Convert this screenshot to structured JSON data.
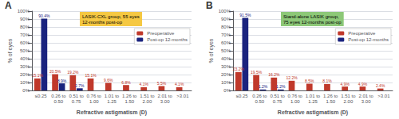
{
  "chart_data": [
    {
      "type": "bar",
      "title": "A",
      "categories": [
        "≤0.25",
        "0.26 to\n0.50",
        "0.51 to\n0.75",
        "0.76 to\n1.00",
        "1.01 to\n1.25",
        "1.26 to\n1.50",
        "1.51 to\n2.00",
        "2.01 to\n3.00",
        ">3.01"
      ],
      "series": [
        {
          "name": "Preoperative",
          "color": "#c0392b",
          "values": [
            15.1,
            20.5,
            19.2,
            15.1,
            9.6,
            6.8,
            4.1,
            5.5,
            4.1
          ],
          "value_labels": [
            "15.1%",
            "20.5%",
            "19.2%",
            "15.1%",
            "9.6%",
            "6.8%",
            "4.1%",
            "5.5%",
            "4.1%"
          ]
        },
        {
          "name": "Post-op 12-months",
          "color": "#1a237e",
          "values": [
            90.4,
            8.9,
            2.7,
            0.0,
            0.0,
            0.0,
            0.0,
            0.0,
            0.0
          ],
          "value_labels": [
            "90.4%",
            "8.9%",
            "2.7%",
            null,
            null,
            null,
            null,
            null,
            null
          ]
        }
      ],
      "xlabel": "Refractive astigmatism (D)",
      "ylabel": "% of eyes",
      "ylim": [
        0,
        100
      ],
      "yticks": [
        {
          "value": 0,
          "label": "0%"
        },
        {
          "value": 10,
          "label": "10%"
        },
        {
          "value": 20,
          "label": "20%"
        },
        {
          "value": 30,
          "label": "30%"
        },
        {
          "value": 40,
          "label": "40%"
        },
        {
          "value": 50,
          "label": "50%"
        },
        {
          "value": 60,
          "label": "60%"
        },
        {
          "value": 70,
          "label": "70%"
        },
        {
          "value": 80,
          "label": "80%"
        },
        {
          "value": 90,
          "label": "90%"
        },
        {
          "value": 100,
          "label": "100%"
        }
      ],
      "grid": true,
      "legend": "upper right",
      "data_labels": true,
      "annotation": {
        "text": "LASIK-CXL group, 55 eyes\n12-months post-op",
        "color": "#f5c842"
      }
    },
    {
      "type": "bar",
      "title": "B",
      "categories": [
        "≤0.25",
        "0.26 to\n0.50",
        "0.51 to\n0.75",
        "0.76 to\n1.00",
        "1.01 to\n1.25",
        "1.26 to\n1.50",
        "1.51 to\n2.00",
        "2.01 to\n3.00",
        ">3.01"
      ],
      "series": [
        {
          "name": "Preoperative",
          "color": "#c0392b",
          "values": [
            23.2,
            19.5,
            16.2,
            12.2,
            8.5,
            8.1,
            4.9,
            4.9,
            2.4
          ],
          "value_labels": [
            "23.2%",
            "19.5%",
            "16.2%",
            "12.2%",
            "8.5%",
            "8.1%",
            "4.9%",
            "4.9%",
            "2.4%"
          ]
        },
        {
          "name": "Post-op 12-months",
          "color": "#1a237e",
          "values": [
            91.5,
            1.2,
            1.2,
            0.0,
            0.0,
            0.0,
            0.0,
            0.0,
            0.0
          ],
          "value_labels": [
            "91.5%",
            "1.2%",
            "1.2%",
            null,
            null,
            null,
            null,
            null,
            null
          ]
        }
      ],
      "xlabel": "Refractive astigmatism (D)",
      "ylabel": "% of eyes",
      "ylim": [
        0,
        100
      ],
      "yticks": [
        {
          "value": 0,
          "label": "0%"
        },
        {
          "value": 10,
          "label": "10%"
        },
        {
          "value": 20,
          "label": "20%"
        },
        {
          "value": 30,
          "label": "30%"
        },
        {
          "value": 40,
          "label": "40%"
        },
        {
          "value": 50,
          "label": "50%"
        },
        {
          "value": 60,
          "label": "60%"
        },
        {
          "value": 70,
          "label": "70%"
        },
        {
          "value": 80,
          "label": "80%"
        },
        {
          "value": 90,
          "label": "90%"
        },
        {
          "value": 100,
          "label": "100%"
        }
      ],
      "grid": true,
      "legend": "upper right",
      "data_labels": true,
      "annotation": {
        "text": "Stand-alone LASIK group,\n75 eyes 12-months post-op",
        "color": "#8dc878"
      }
    }
  ]
}
